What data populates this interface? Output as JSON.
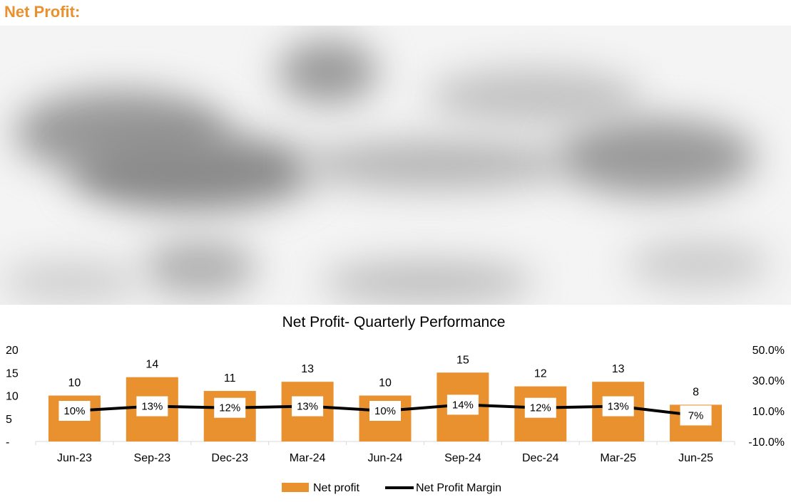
{
  "page": {
    "heading": "Net Profit:"
  },
  "colors": {
    "heading": "#e8912e",
    "bar": "#e8912e",
    "line": "#000000"
  },
  "chart_data": {
    "type": "bar",
    "title": "Net Profit- Quarterly Performance",
    "categories": [
      "Jun-23",
      "Sep-23",
      "Dec-23",
      "Mar-24",
      "Jun-24",
      "Sep-24",
      "Dec-24",
      "Mar-25",
      "Jun-25"
    ],
    "series": [
      {
        "name": "Net profit",
        "type": "bar",
        "axis": "left",
        "values": [
          10,
          14,
          11,
          13,
          10,
          15,
          12,
          13,
          8
        ],
        "labels": [
          "10",
          "14",
          "11",
          "13",
          "10",
          "15",
          "12",
          "13",
          "8"
        ]
      },
      {
        "name": "Net Profit Margin",
        "type": "line",
        "axis": "right",
        "values": [
          0.1,
          0.13,
          0.12,
          0.13,
          0.1,
          0.14,
          0.12,
          0.13,
          0.07
        ],
        "labels": [
          "10%",
          "13%",
          "12%",
          "13%",
          "10%",
          "14%",
          "12%",
          "13%",
          "7%"
        ]
      }
    ],
    "yleft": {
      "ylim": [
        0,
        20
      ],
      "ticks": [
        0,
        5,
        10,
        15,
        20
      ],
      "tick_labels": [
        "-",
        "5",
        "10",
        "15",
        "20"
      ]
    },
    "yright": {
      "ylim": [
        -0.1,
        0.5
      ],
      "ticks": [
        -0.1,
        0.1,
        0.3,
        0.5
      ],
      "tick_labels": [
        "-10.0%",
        "10.0%",
        "30.0%",
        "50.0%"
      ]
    },
    "grid": false,
    "legend": "bottom"
  }
}
